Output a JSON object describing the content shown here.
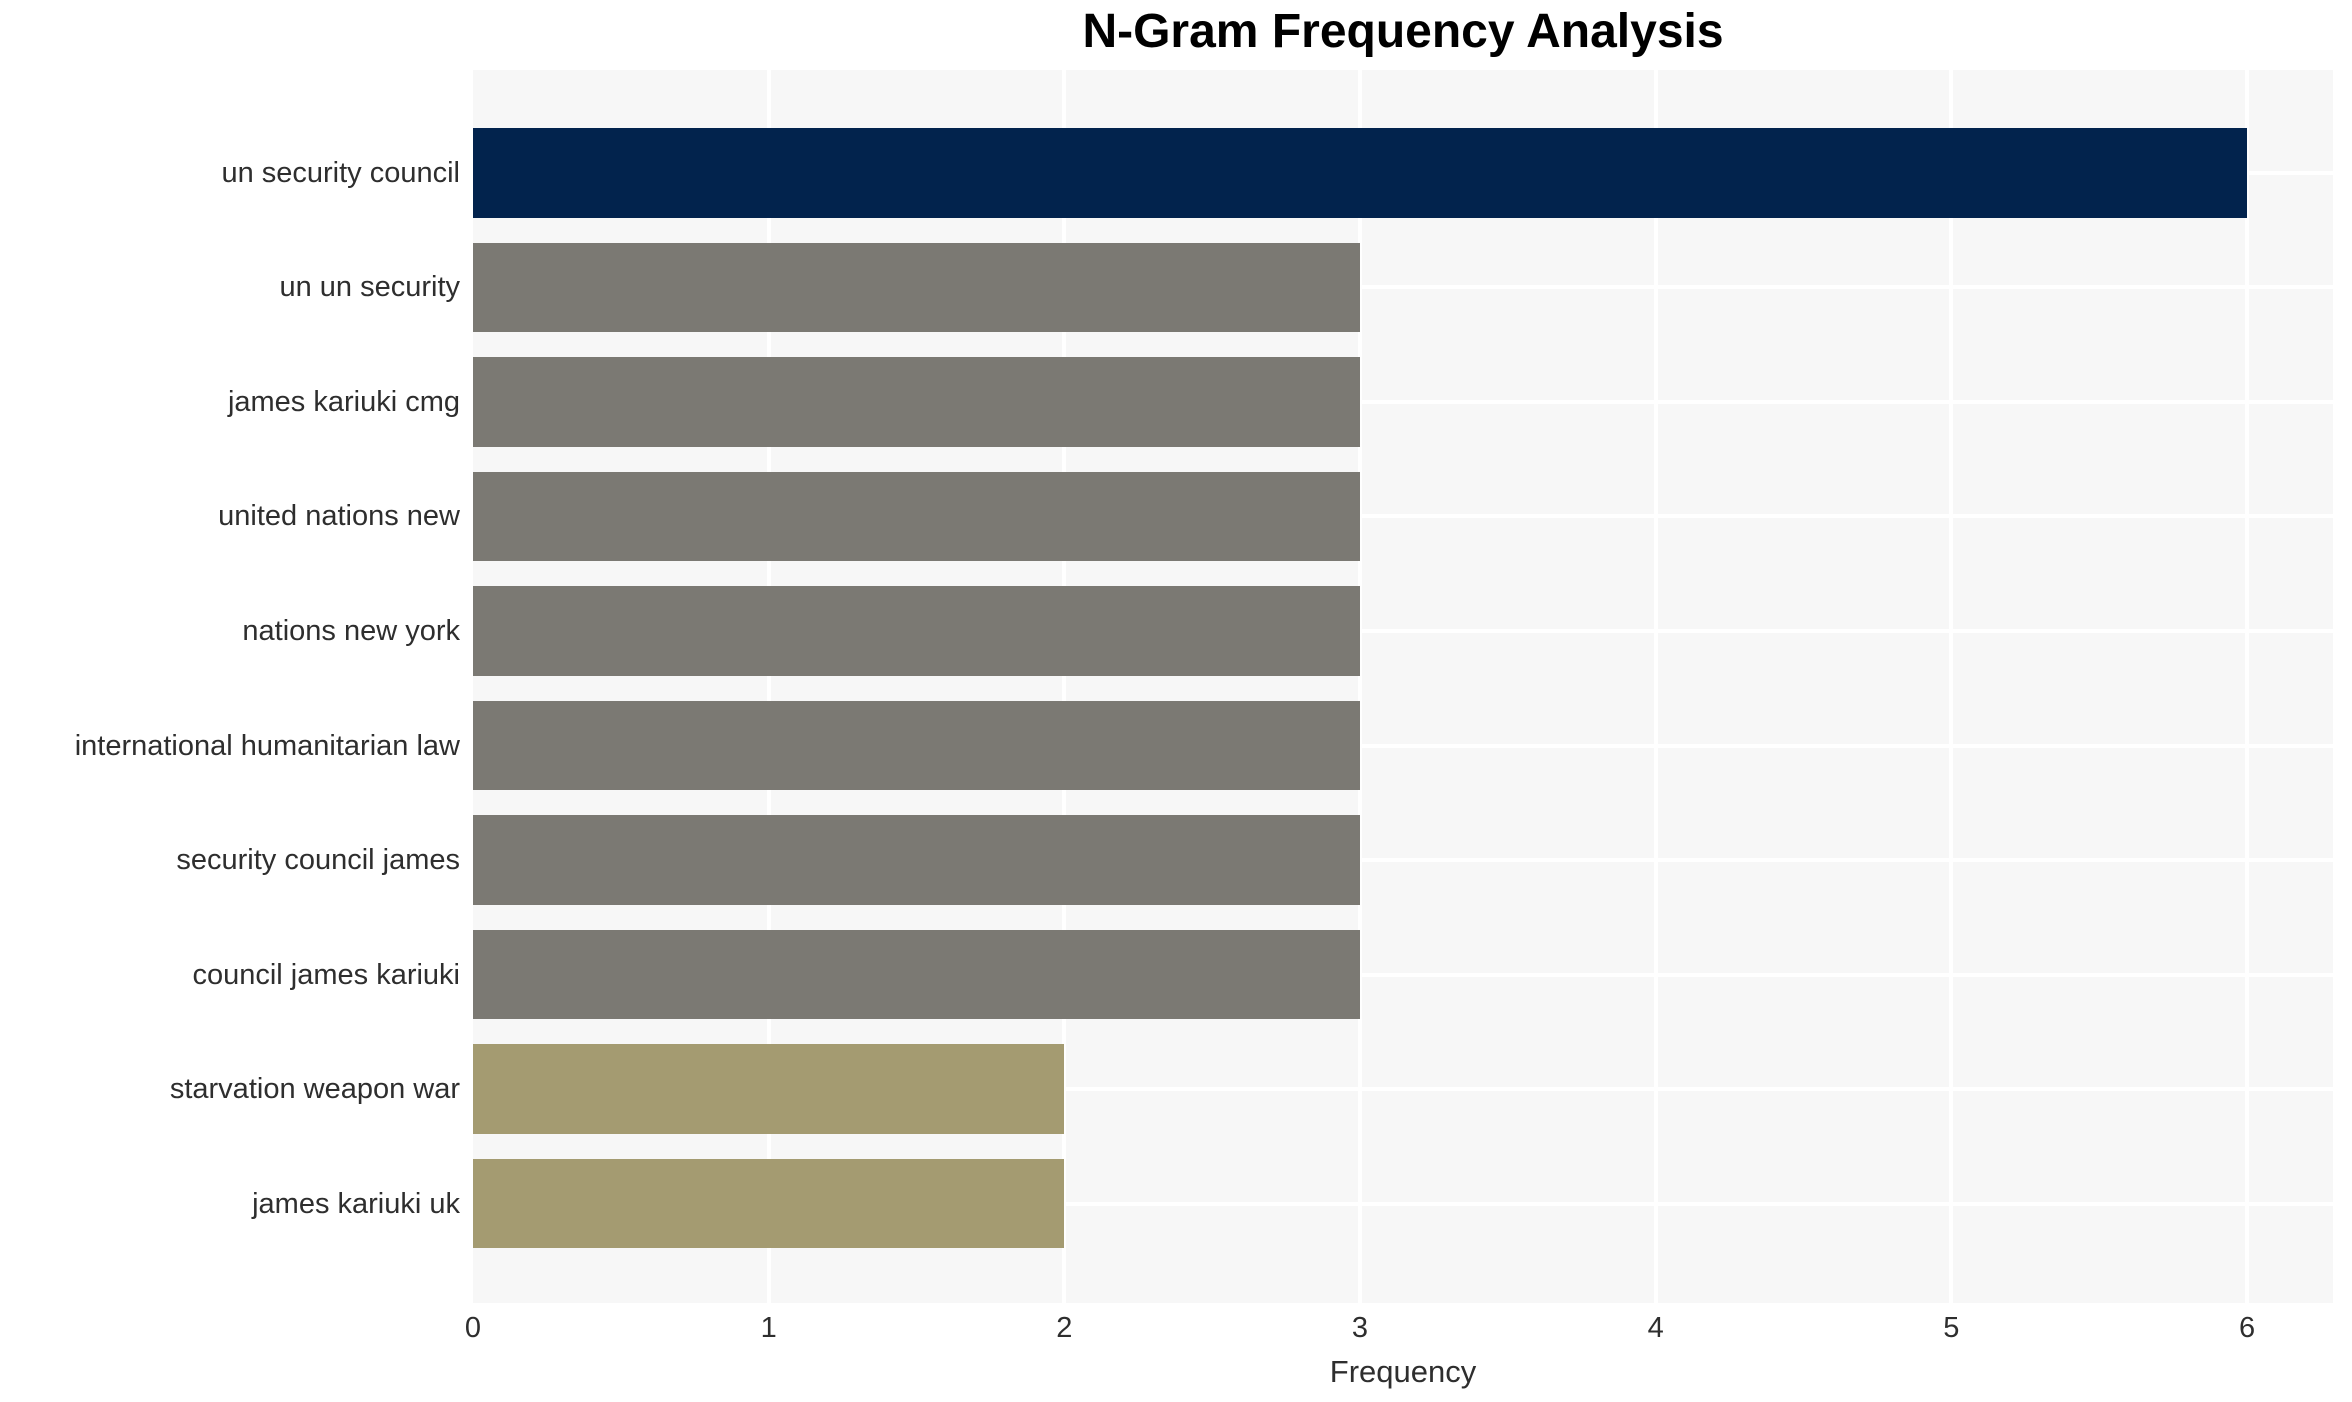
{
  "chart_data": {
    "type": "bar",
    "orientation": "horizontal",
    "title": "N-Gram Frequency Analysis",
    "xlabel": "Frequency",
    "ylabel": "",
    "categories": [
      "un security council",
      "un un security",
      "james kariuki cmg",
      "united nations new",
      "nations new york",
      "international humanitarian law",
      "security council james",
      "council james kariuki",
      "starvation weapon war",
      "james kariuki uk"
    ],
    "values": [
      6,
      3,
      3,
      3,
      3,
      3,
      3,
      3,
      2,
      2
    ],
    "bar_colors": [
      "#02234d",
      "#7b7973",
      "#7b7973",
      "#7b7973",
      "#7b7973",
      "#7b7973",
      "#7b7973",
      "#7b7973",
      "#a49b71",
      "#a49b71"
    ],
    "x_ticks": [
      0,
      1,
      2,
      3,
      4,
      5,
      6
    ],
    "xlim": [
      0,
      6.29
    ],
    "grid": "white gridlines on light-gray plot background",
    "legend": "none"
  },
  "colors": {
    "bar_navy": "#02234d",
    "bar_gray": "#7b7973",
    "bar_khaki": "#a49b71",
    "plot_background": "#f7f7f7",
    "gridline": "#ffffff",
    "page_background": "#ffffff",
    "text": "#2e2e2e",
    "title_text": "#000000"
  }
}
